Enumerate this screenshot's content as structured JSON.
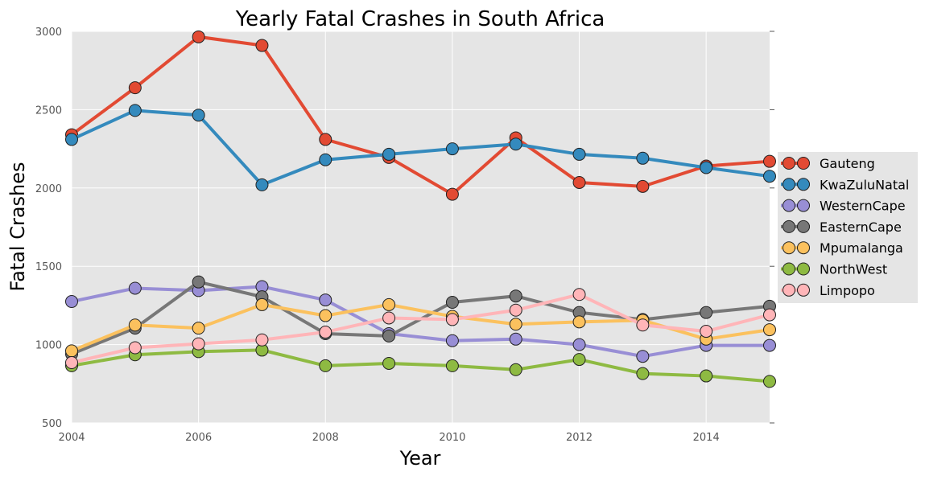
{
  "chart_data": {
    "type": "line",
    "title": "Yearly Fatal Crashes in South Africa",
    "xlabel": "Year",
    "ylabel": "Fatal Crashes",
    "xlim": [
      2004,
      2015
    ],
    "ylim": [
      500,
      3000
    ],
    "xticks": [
      "2004",
      "2006",
      "2008",
      "2010",
      "2012",
      "2014"
    ],
    "yticks": [
      "500",
      "1000",
      "1500",
      "2000",
      "2500",
      "3000"
    ],
    "grid": true,
    "legend_position": "right",
    "x": [
      2004,
      2005,
      2006,
      2007,
      2008,
      2009,
      2010,
      2011,
      2012,
      2013,
      2014,
      2015
    ],
    "series": [
      {
        "name": "Gauteng",
        "color": "#E24A33",
        "values": [
          2340,
          2640,
          2965,
          2910,
          2310,
          2195,
          1960,
          2320,
          2035,
          2010,
          2140,
          2170
        ]
      },
      {
        "name": "KwaZuluNatal",
        "color": "#348ABD",
        "values": [
          2310,
          2495,
          2465,
          2020,
          2180,
          2215,
          2250,
          2280,
          2215,
          2190,
          2130,
          2075
        ]
      },
      {
        "name": "WesternCape",
        "color": "#988ED5",
        "values": [
          1275,
          1360,
          1345,
          1370,
          1285,
          1070,
          1025,
          1035,
          1000,
          925,
          995,
          995
        ]
      },
      {
        "name": "EasternCape",
        "color": "#777777",
        "values": [
          940,
          1105,
          1400,
          1305,
          1070,
          1055,
          1270,
          1310,
          1205,
          1160,
          1205,
          1245
        ]
      },
      {
        "name": "Mpumalanga",
        "color": "#FBC15E",
        "values": [
          960,
          1125,
          1105,
          1255,
          1185,
          1255,
          1180,
          1130,
          1145,
          1155,
          1035,
          1095
        ]
      },
      {
        "name": "NorthWest",
        "color": "#8EBA42",
        "values": [
          865,
          935,
          955,
          965,
          865,
          880,
          865,
          840,
          905,
          815,
          800,
          765
        ]
      },
      {
        "name": "Limpopo",
        "color": "#FFB5B8",
        "values": [
          885,
          980,
          1005,
          1030,
          1080,
          1170,
          1160,
          1220,
          1320,
          1125,
          1085,
          1190
        ]
      }
    ]
  }
}
